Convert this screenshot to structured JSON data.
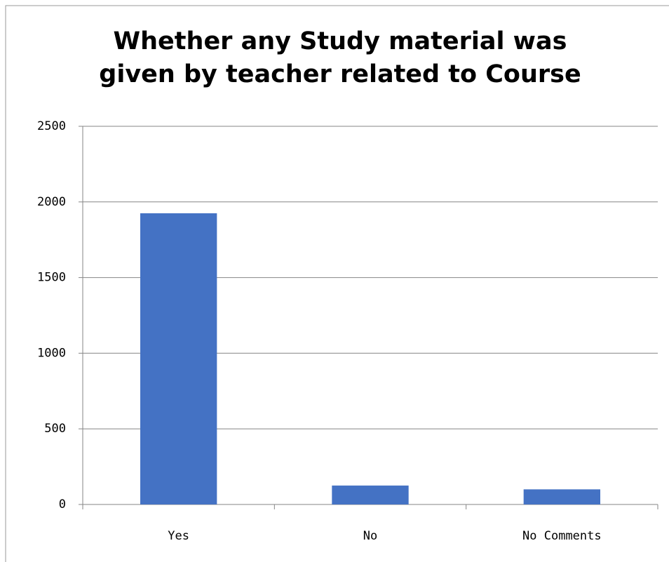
{
  "chart_data": {
    "type": "bar",
    "title": "Whether any Study material was given by teacher related to Course",
    "categories": [
      "Yes",
      "No",
      "No Comments"
    ],
    "values": [
      1925,
      125,
      100
    ],
    "color": "#4472c4",
    "ylim": [
      0,
      2500
    ],
    "yticks": [
      0,
      500,
      1000,
      1500,
      2000,
      2500
    ],
    "grid": true
  }
}
